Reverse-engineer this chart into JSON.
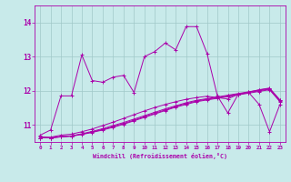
{
  "title": "",
  "xlabel": "Windchill (Refroidissement éolien,°C)",
  "ylabel": "",
  "xlim": [
    -0.5,
    23.5
  ],
  "ylim": [
    10.5,
    14.5
  ],
  "yticks": [
    11,
    12,
    13,
    14
  ],
  "xticks": [
    0,
    1,
    2,
    3,
    4,
    5,
    6,
    7,
    8,
    9,
    10,
    11,
    12,
    13,
    14,
    15,
    16,
    17,
    18,
    19,
    20,
    21,
    22,
    23
  ],
  "bg_color": "#c8eaea",
  "grid_color": "#a0c8c8",
  "line_color": "#aa00aa",
  "lines": [
    [
      10.7,
      10.85,
      11.85,
      11.85,
      13.05,
      12.3,
      12.25,
      12.4,
      12.45,
      11.95,
      13.0,
      13.15,
      13.4,
      13.2,
      13.88,
      13.88,
      13.1,
      11.85,
      11.35,
      11.9,
      11.95,
      11.6,
      10.8,
      11.6
    ],
    [
      10.62,
      10.62,
      10.65,
      10.67,
      10.72,
      10.78,
      10.85,
      10.93,
      11.02,
      11.12,
      11.22,
      11.32,
      11.42,
      11.52,
      11.6,
      11.68,
      11.73,
      11.78,
      11.83,
      11.88,
      11.93,
      11.98,
      12.03,
      11.68
    ],
    [
      10.62,
      10.62,
      10.65,
      10.67,
      10.73,
      10.79,
      10.87,
      10.95,
      11.04,
      11.14,
      11.24,
      11.34,
      11.44,
      11.54,
      11.62,
      11.7,
      11.75,
      11.8,
      11.85,
      11.9,
      11.95,
      12.0,
      12.05,
      11.7
    ],
    [
      10.62,
      10.62,
      10.66,
      10.68,
      10.74,
      10.81,
      10.89,
      10.98,
      11.07,
      11.17,
      11.27,
      11.37,
      11.47,
      11.56,
      11.65,
      11.72,
      11.77,
      11.82,
      11.87,
      11.92,
      11.97,
      12.02,
      12.07,
      11.72
    ],
    [
      10.65,
      10.64,
      10.7,
      10.73,
      10.8,
      10.88,
      10.98,
      11.08,
      11.19,
      11.3,
      11.41,
      11.51,
      11.6,
      11.68,
      11.75,
      11.8,
      11.84,
      11.8,
      11.76,
      11.9,
      11.96,
      12.03,
      12.08,
      11.73
    ]
  ]
}
